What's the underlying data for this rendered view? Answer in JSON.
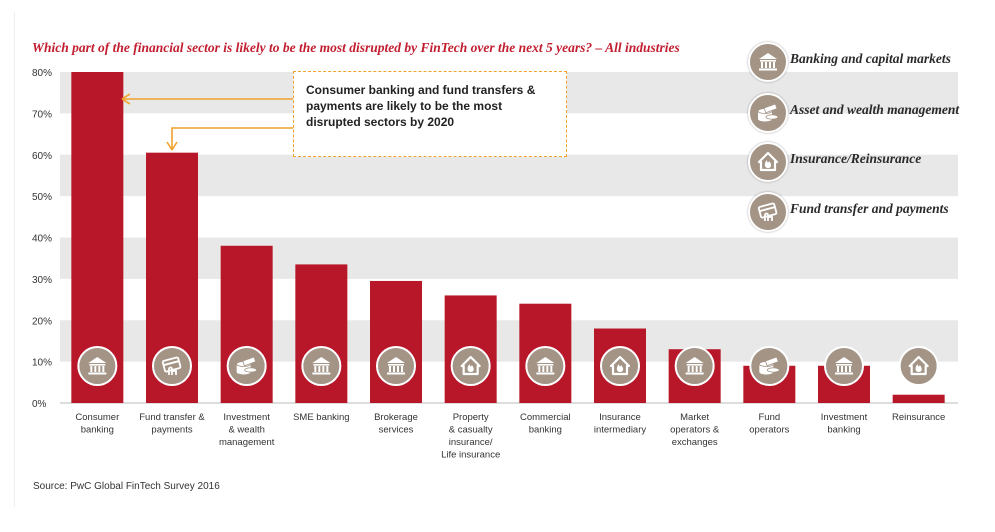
{
  "chart_data": {
    "type": "bar",
    "title": "Which part of the financial sector is likely to be the most disrupted by FinTech over the next 5 years? – All industries",
    "xlabel": "",
    "ylabel": "",
    "ylim": [
      0,
      80
    ],
    "yticks": [
      "0%",
      "10%",
      "20%",
      "30%",
      "40%",
      "50%",
      "60%",
      "70%",
      "80%"
    ],
    "categories": [
      [
        "Consumer",
        "banking"
      ],
      [
        "Fund transfer &",
        "payments"
      ],
      [
        "Investment",
        "& wealth",
        "management"
      ],
      [
        "SME banking"
      ],
      [
        "Brokerage",
        "services"
      ],
      [
        "Property",
        "& casualty",
        "insurance/",
        "Life insurance"
      ],
      [
        "Commercial",
        "banking"
      ],
      [
        "Insurance",
        "intermediary"
      ],
      [
        "Market",
        "operators &",
        "exchanges"
      ],
      [
        "Fund",
        "operators"
      ],
      [
        "Investment",
        "banking"
      ],
      [
        "Reinsurance"
      ]
    ],
    "values": [
      80,
      60.5,
      38,
      33.5,
      29.5,
      26,
      24,
      18,
      13,
      9,
      9,
      2
    ],
    "bar_icons": [
      "bank-icon",
      "card-icon",
      "coins-icon",
      "bank-icon",
      "bank-icon",
      "house-flame-icon",
      "bank-icon",
      "house-flame-icon",
      "bank-icon",
      "coins-icon",
      "bank-icon",
      "house-flame-icon"
    ],
    "bar_color": "#b8172a",
    "band_color": "#e8e8e8",
    "grid": false,
    "legend_position": "top-right"
  },
  "legend": [
    {
      "icon": "bank-icon",
      "label": "Banking and capital markets"
    },
    {
      "icon": "coins-icon",
      "label": "Asset and wealth management"
    },
    {
      "icon": "house-flame-icon",
      "label": "Insurance/Reinsurance"
    },
    {
      "icon": "card-icon",
      "label": "Fund transfer and payments"
    }
  ],
  "callout": {
    "text": "Consumer banking and fund transfers & payments are likely to be the most disrupted sectors by 2020"
  },
  "source": "Source: PwC Global FinTech Survey 2016",
  "colors": {
    "title": "#c21e30",
    "arrow": "#f0a22c",
    "icon_fill": "#a39486"
  }
}
